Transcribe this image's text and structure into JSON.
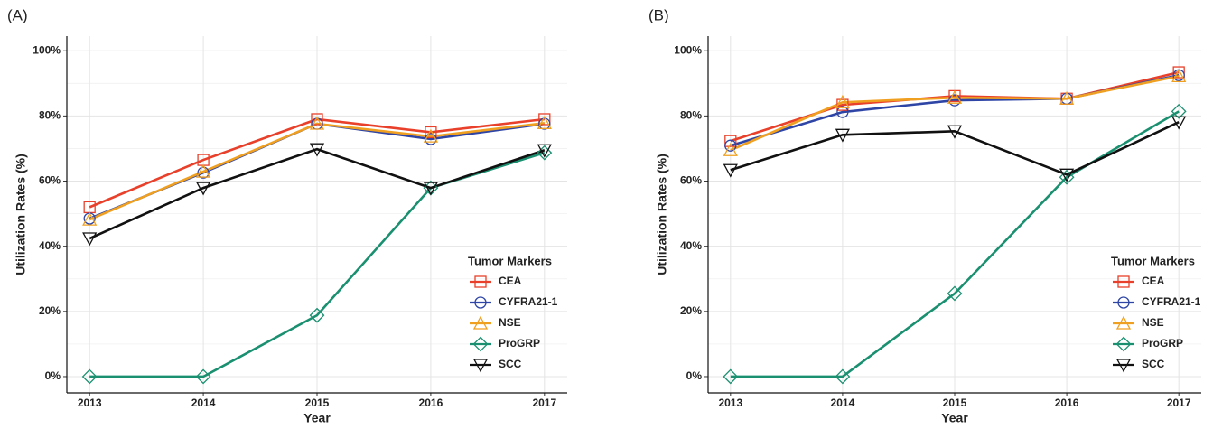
{
  "chart_data": [
    {
      "type": "line",
      "title": "(A)",
      "x_label": "Year",
      "y_label": "Utilization Rates (%)",
      "x": [
        2013,
        2014,
        2015,
        2016,
        2017
      ],
      "xlim": [
        2012.8,
        2017.2
      ],
      "xticks": [
        2013,
        2014,
        2015,
        2016,
        2017
      ],
      "ylim": [
        -5,
        104.5
      ],
      "yticks": [
        {
          "value": 0,
          "label": "0%"
        },
        {
          "value": 20,
          "label": "20%"
        },
        {
          "value": 40,
          "label": "40%"
        },
        {
          "value": 60,
          "label": "60%"
        },
        {
          "value": 80,
          "label": "80%"
        },
        {
          "value": 100,
          "label": "100%"
        }
      ],
      "minor_yticks": [
        10,
        30,
        50,
        70,
        90
      ],
      "grid": true,
      "legend_title": "Tumor Markers",
      "legend_position": "lower right",
      "series": [
        {
          "name": "CEA",
          "color": "#e8402a",
          "marker": "square",
          "values": [
            52,
            66.5,
            79,
            75,
            79
          ]
        },
        {
          "name": "CYFRA21-1",
          "color": "#2e45a6",
          "marker": "circle",
          "values": [
            48.5,
            62.6,
            77.6,
            72.9,
            77.6
          ]
        },
        {
          "name": "NSE",
          "color": "#f0a020",
          "marker": "triangle-up",
          "values": [
            48.2,
            62.9,
            77.6,
            73.7,
            77.8
          ]
        },
        {
          "name": "ProGRP",
          "color": "#1a9070",
          "marker": "diamond",
          "values": [
            0,
            0,
            18.8,
            57.9,
            68.7
          ]
        },
        {
          "name": "SCC",
          "color": "#111111",
          "marker": "triangle-down",
          "values": [
            42.4,
            57.9,
            69.8,
            57.9,
            69.5
          ]
        }
      ]
    },
    {
      "type": "line",
      "title": "(B)",
      "x_label": "Year",
      "y_label": "Utilization Rates (%)",
      "x": [
        2013,
        2014,
        2015,
        2016,
        2017
      ],
      "xlim": [
        2012.8,
        2017.2
      ],
      "xticks": [
        2013,
        2014,
        2015,
        2016,
        2017
      ],
      "ylim": [
        -5,
        104.5
      ],
      "yticks": [
        {
          "value": 0,
          "label": "0%"
        },
        {
          "value": 20,
          "label": "20%"
        },
        {
          "value": 40,
          "label": "40%"
        },
        {
          "value": 60,
          "label": "60%"
        },
        {
          "value": 80,
          "label": "80%"
        },
        {
          "value": 100,
          "label": "100%"
        }
      ],
      "minor_yticks": [
        10,
        30,
        50,
        70,
        90
      ],
      "grid": true,
      "legend_title": "Tumor Markers",
      "legend_position": "lower right",
      "series": [
        {
          "name": "CEA",
          "color": "#e8402a",
          "marker": "square",
          "values": [
            72.3,
            83.4,
            86.1,
            85.3,
            93.4
          ]
        },
        {
          "name": "CYFRA21-1",
          "color": "#2e45a6",
          "marker": "circle",
          "values": [
            70.9,
            81.2,
            84.8,
            85.3,
            92.5
          ]
        },
        {
          "name": "NSE",
          "color": "#f0a020",
          "marker": "triangle-up",
          "values": [
            69.5,
            84.2,
            85.6,
            85.3,
            92.2
          ]
        },
        {
          "name": "ProGRP",
          "color": "#1a9070",
          "marker": "diamond",
          "values": [
            0,
            0,
            25.5,
            61.2,
            81.4
          ]
        },
        {
          "name": "SCC",
          "color": "#111111",
          "marker": "triangle-down",
          "values": [
            63.4,
            74.2,
            75.3,
            62,
            78.1
          ]
        }
      ]
    }
  ]
}
